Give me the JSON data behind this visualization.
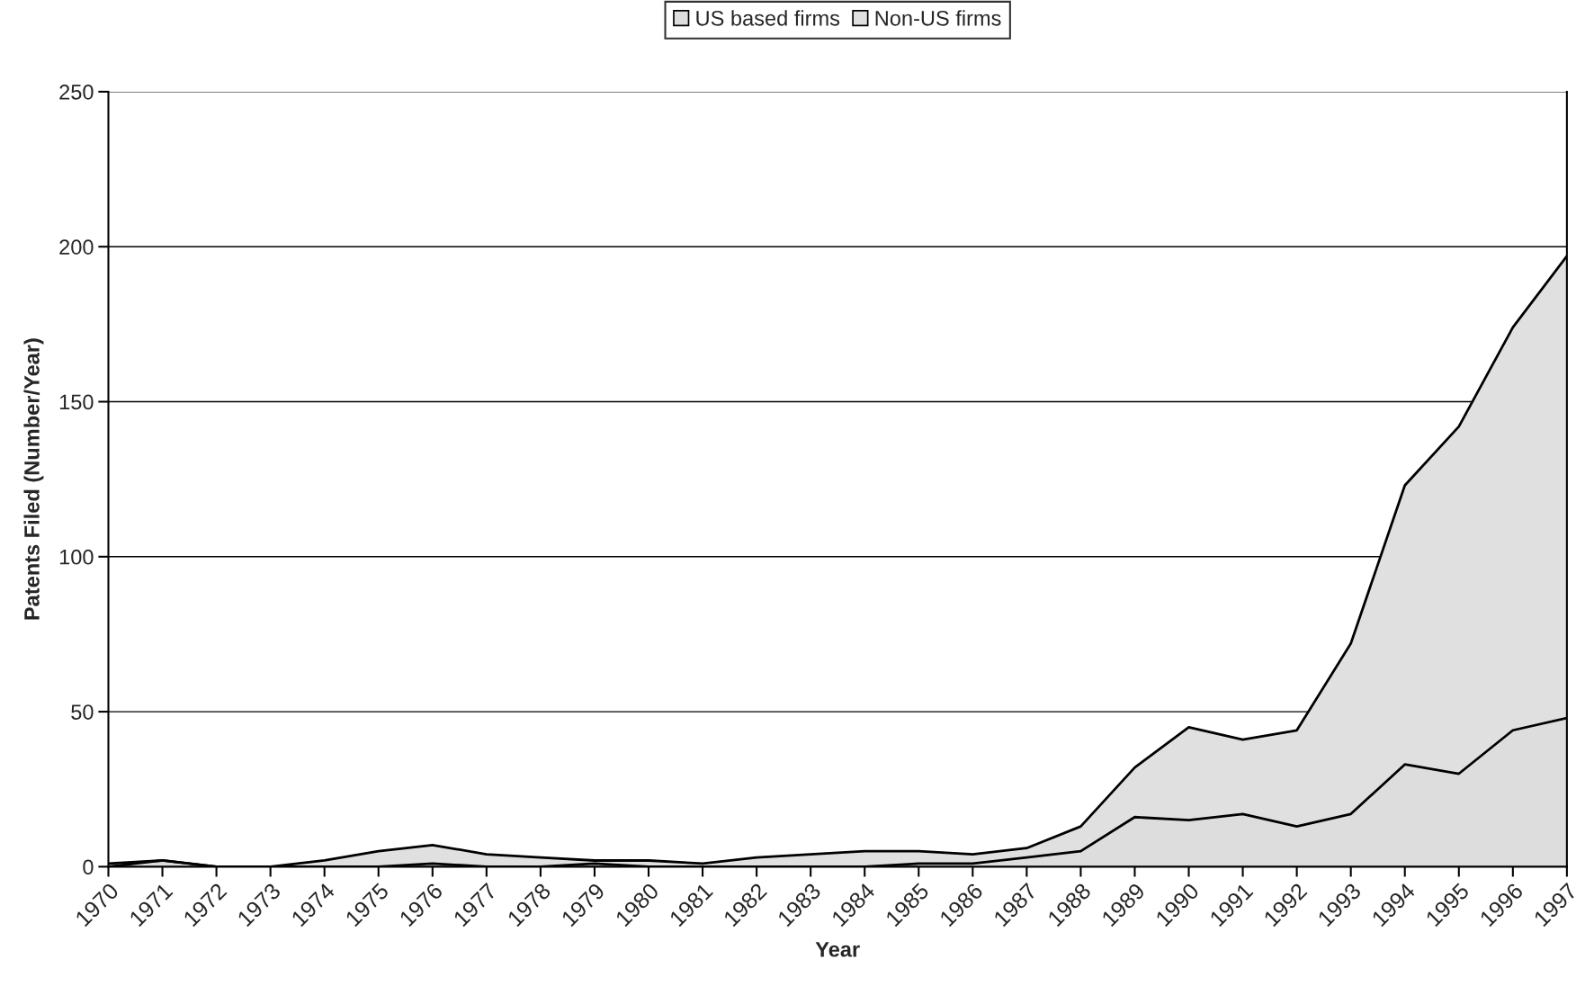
{
  "chart_data": {
    "type": "area",
    "stacked": true,
    "xlabel": "Year",
    "ylabel": "Patents Filed (Number/Year)",
    "categories": [
      "1970",
      "1971",
      "1972",
      "1973",
      "1974",
      "1975",
      "1976",
      "1977",
      "1978",
      "1979",
      "1980",
      "1981",
      "1982",
      "1983",
      "1984",
      "1985",
      "1986",
      "1987",
      "1988",
      "1989",
      "1990",
      "1991",
      "1992",
      "1993",
      "1994",
      "1995",
      "1996",
      "1997"
    ],
    "series": [
      {
        "name": "US based firms",
        "color": "#dddddd",
        "values": [
          0,
          2,
          0,
          0,
          0,
          0,
          1,
          0,
          0,
          1,
          0,
          0,
          0,
          0,
          0,
          1,
          1,
          3,
          5,
          16,
          15,
          17,
          13,
          17,
          33,
          30,
          44,
          48
        ]
      },
      {
        "name": "Non-US firms",
        "color": "#e0e0e0",
        "values": [
          1,
          0,
          0,
          0,
          2,
          5,
          6,
          4,
          3,
          1,
          2,
          1,
          3,
          4,
          5,
          4,
          3,
          3,
          8,
          16,
          30,
          24,
          31,
          55,
          90,
          112,
          130,
          149
        ]
      }
    ],
    "ylim": [
      0,
      250
    ],
    "yticks": [
      0,
      50,
      100,
      150,
      200,
      250
    ],
    "grid": "y",
    "legend": "top"
  }
}
